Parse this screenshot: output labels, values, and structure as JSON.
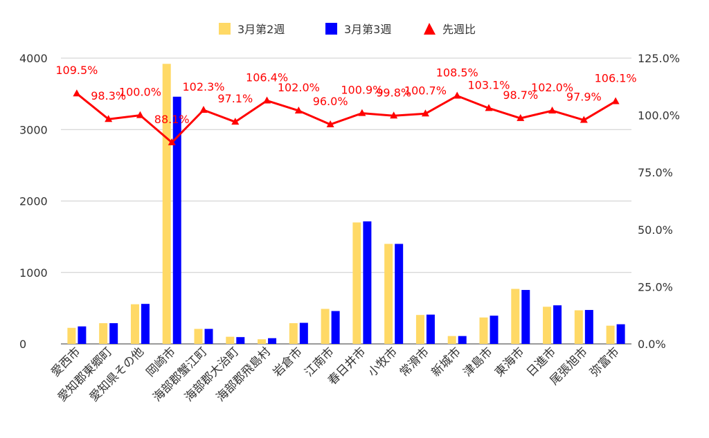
{
  "chart_data": {
    "type": "bar",
    "categories": [
      "愛西市",
      "愛知郡東郷町",
      "愛知県その他",
      "岡崎市",
      "海部郡蟹江町",
      "海部郡大治町",
      "海部郡飛島村",
      "岩倉市",
      "江南市",
      "春日井市",
      "小牧市",
      "常滑市",
      "新城市",
      "津島市",
      "東海市",
      "日進市",
      "尾張旭市",
      "弥富市"
    ],
    "series": [
      {
        "name": "3月第2週",
        "color": "#ffd966",
        "axis": "left",
        "type": "bar",
        "values": [
          225,
          290,
          555,
          3920,
          210,
          100,
          65,
          290,
          490,
          1700,
          1400,
          405,
          110,
          370,
          770,
          520,
          470,
          255
        ]
      },
      {
        "name": "3月第3週",
        "color": "#0000ff",
        "axis": "left",
        "type": "bar",
        "values": [
          245,
          290,
          560,
          3460,
          210,
          95,
          80,
          295,
          460,
          1715,
          1400,
          410,
          110,
          395,
          755,
          540,
          475,
          275
        ]
      },
      {
        "name": "先週比",
        "color": "#ff0000",
        "axis": "right",
        "type": "line",
        "marker": "triangle",
        "values": [
          109.5,
          98.3,
          100.0,
          88.1,
          102.3,
          97.1,
          106.4,
          102.0,
          96.0,
          100.9,
          99.8,
          100.7,
          108.5,
          103.1,
          98.7,
          102.0,
          97.9,
          106.1
        ],
        "labels": [
          "109.5%",
          "98.3%",
          "100.0%",
          "88.1%",
          "102.3%",
          "97.1%",
          "106.4%",
          "102.0%",
          "96.0%",
          "100.9%",
          "99.8%",
          "100.7%",
          "108.5%",
          "103.1%",
          "98.7%",
          "102.0%",
          "97.9%",
          "106.1%"
        ]
      }
    ],
    "left_axis": {
      "min": 0,
      "max": 4000,
      "ticks": [
        "0",
        "1000",
        "2000",
        "3000",
        "4000"
      ],
      "tick_values": [
        0,
        1000,
        2000,
        3000,
        4000
      ]
    },
    "right_axis": {
      "min": 0,
      "max": 125,
      "ticks": [
        "0.0%",
        "25.0%",
        "50.0%",
        "75.0%",
        "100.0%",
        "125.0%"
      ],
      "tick_values": [
        0,
        25,
        50,
        75,
        100,
        125
      ]
    },
    "grid": true,
    "legend_position": "top"
  }
}
